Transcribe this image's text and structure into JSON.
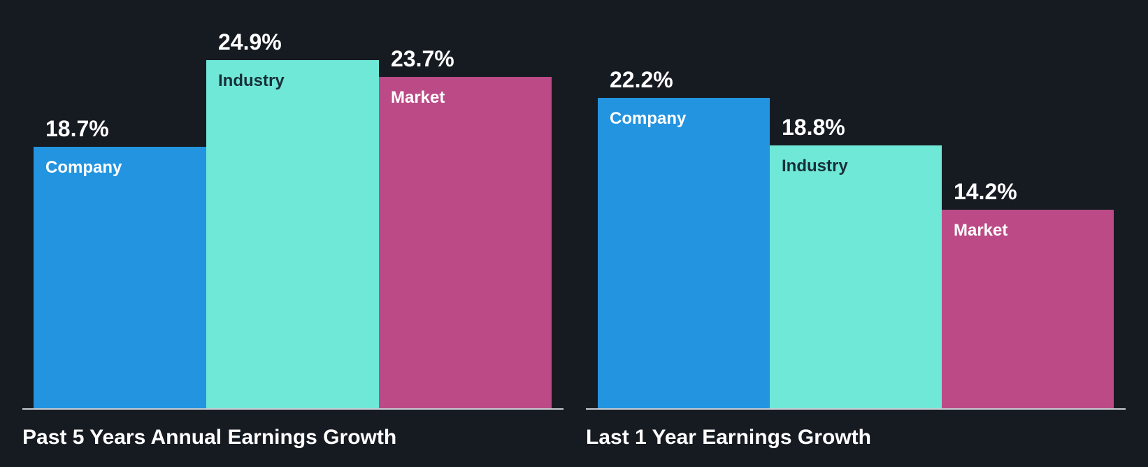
{
  "chart_data": [
    {
      "type": "bar",
      "title": "Past 5 Years Annual Earnings Growth",
      "categories": [
        "Company",
        "Industry",
        "Market"
      ],
      "values": [
        18.7,
        24.9,
        23.7
      ],
      "value_labels": [
        "18.7%",
        "24.9%",
        "23.7%"
      ],
      "colors": [
        "#2394e0",
        "#70e8d7",
        "#bb4a86"
      ],
      "label_colors": [
        "#ffffff",
        "#17303a",
        "#ffffff"
      ],
      "unit": "%",
      "ylim": [
        0,
        25
      ],
      "grid": false
    },
    {
      "type": "bar",
      "title": "Last 1 Year Earnings Growth",
      "categories": [
        "Company",
        "Industry",
        "Market"
      ],
      "values": [
        22.2,
        18.8,
        14.2
      ],
      "value_labels": [
        "22.2%",
        "18.8%",
        "14.2%"
      ],
      "colors": [
        "#2394e0",
        "#70e8d7",
        "#bb4a86"
      ],
      "label_colors": [
        "#ffffff",
        "#17303a",
        "#ffffff"
      ],
      "unit": "%",
      "ylim": [
        0,
        25
      ],
      "grid": false
    }
  ],
  "colors": {
    "background": "#161b22",
    "baseline": "#c8ccd2"
  }
}
